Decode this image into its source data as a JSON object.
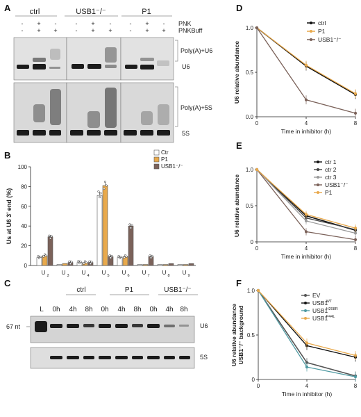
{
  "panels": {
    "A": {
      "label": "A",
      "groups": [
        "ctrl",
        "USB1⁻/⁻",
        "P1"
      ],
      "pnk_label": "PNK",
      "pnkbuff_label": "PNKBuff",
      "pnk_row": [
        "-",
        "+",
        "-",
        "-",
        "+",
        "-",
        "-",
        "+",
        "-"
      ],
      "pnkbuff_row": [
        "-",
        "+",
        "+",
        "-",
        "+",
        "+",
        "-",
        "+",
        "+"
      ],
      "bracket_top": "Poly(A)+U6",
      "bracket_bottom": "Poly(A)+5S",
      "band_top": "U6",
      "band_bottom": "5S"
    },
    "C": {
      "label": "C",
      "groups": [
        "ctrl",
        "P1",
        "USB1⁻/⁻"
      ],
      "ladder": "L",
      "marker": "67 nt",
      "times": [
        "0h",
        "4h",
        "8h",
        "0h",
        "4h",
        "8h",
        "0h",
        "4h",
        "8h"
      ],
      "band_top": "U6",
      "band_bottom": "5S"
    }
  },
  "colors": {
    "ctrl": "#111111",
    "p1": "#e8a94c",
    "usb1": "#7b625a",
    "ctr2": "#444444",
    "ctr3": "#9a9a9a",
    "h208r": "#4f9aa2",
    "p44l": "#e8a94c"
  },
  "chart_data": [
    {
      "id": "B",
      "panel": "B",
      "type": "bar",
      "ylabel": "Us at U6 3’ end (%)",
      "ylim": [
        0,
        100
      ],
      "yticks": [
        "0",
        "20",
        "40",
        "60",
        "80",
        "100"
      ],
      "categories": [
        "U",
        "U",
        "U",
        "U",
        "U",
        "U",
        "U",
        "U"
      ],
      "category_subs": [
        "2",
        "3",
        "4",
        "5",
        "6",
        "7",
        "8",
        "9"
      ],
      "series": [
        {
          "name": "Ctr",
          "color": "#ffffff",
          "values": [
            8,
            1,
            3,
            71,
            8,
            1,
            1,
            1
          ]
        },
        {
          "name": "P1",
          "color": "#e8a94c",
          "values": [
            10,
            2,
            3,
            81,
            9,
            1,
            1,
            1
          ]
        },
        {
          "name": "USB1⁻/⁻",
          "color": "#7b625a",
          "values": [
            29,
            3,
            3,
            9,
            40,
            9,
            2,
            2
          ]
        }
      ]
    },
    {
      "id": "D",
      "panel": "D",
      "type": "line",
      "xlabel": "Time in inhibitor (h)",
      "ylabel": "U6 relative abundance",
      "x": [
        0,
        4,
        8
      ],
      "xlim": [
        0,
        8
      ],
      "ylim": [
        0,
        1.0
      ],
      "xticks": [
        "0",
        "4",
        "8"
      ],
      "yticks": [
        "0.0",
        "0.5",
        "1.0"
      ],
      "series": [
        {
          "name": "ctrl",
          "color": "#111111",
          "values": [
            1.0,
            0.57,
            0.25
          ]
        },
        {
          "name": "P1",
          "color": "#e8a94c",
          "values": [
            1.0,
            0.58,
            0.26
          ]
        },
        {
          "name": "USB1⁻/⁻",
          "color": "#7b625a",
          "values": [
            1.0,
            0.19,
            0.04
          ]
        }
      ]
    },
    {
      "id": "E",
      "panel": "E",
      "type": "line",
      "xlabel": "Time in inhibitor (h)",
      "ylabel": "U6 relative abundance",
      "x": [
        0,
        4,
        8
      ],
      "xlim": [
        0,
        8
      ],
      "ylim": [
        0,
        1.0
      ],
      "xticks": [
        "0",
        "4",
        "8"
      ],
      "yticks": [
        "0",
        "0.5",
        "1.0"
      ],
      "series": [
        {
          "name": "ctr 1",
          "color": "#111111",
          "values": [
            1.0,
            0.36,
            0.16
          ]
        },
        {
          "name": "ctr 2",
          "color": "#444444",
          "values": [
            1.0,
            0.33,
            0.17
          ]
        },
        {
          "name": "ctr 3",
          "color": "#9a9a9a",
          "values": [
            1.0,
            0.29,
            0.12
          ]
        },
        {
          "name": "USB1⁻/⁻",
          "color": "#7b625a",
          "values": [
            1.0,
            0.14,
            0.03
          ]
        },
        {
          "name": "P1",
          "color": "#e8a94c",
          "values": [
            1.0,
            0.38,
            0.19
          ]
        }
      ]
    },
    {
      "id": "F",
      "panel": "F",
      "type": "line",
      "xlabel": "Time in inhibitor (h)",
      "ylabel": "U6 relative abundance",
      "ylabel2": "USB1⁻/⁻ background",
      "x": [
        0,
        4,
        8
      ],
      "xlim": [
        0,
        8
      ],
      "ylim": [
        0,
        1.0
      ],
      "xticks": [
        "0",
        "4",
        "8"
      ],
      "yticks": [
        "0",
        "0.5",
        "1.0"
      ],
      "series": [
        {
          "name": "EV",
          "sup": "",
          "color": "#555555",
          "values": [
            1.0,
            0.19,
            0.04
          ]
        },
        {
          "name": "USB1",
          "sup": "WT",
          "color": "#111111",
          "values": [
            1.0,
            0.38,
            0.25
          ]
        },
        {
          "name": "USB1",
          "sup": "H208R",
          "color": "#4f9aa2",
          "values": [
            1.0,
            0.14,
            0.03
          ]
        },
        {
          "name": "USB1",
          "sup": "P44L",
          "color": "#e8a94c",
          "values": [
            1.0,
            0.41,
            0.27
          ]
        }
      ]
    }
  ]
}
